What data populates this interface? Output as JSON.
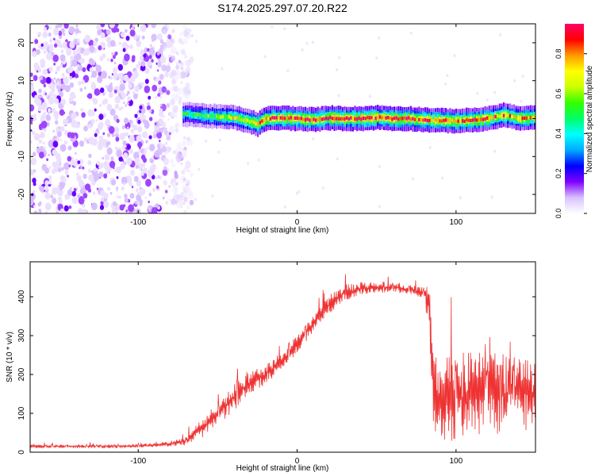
{
  "title": "S174.2025.297.07.20.R22",
  "chart_data": [
    {
      "type": "heatmap",
      "xlabel": "Height of straight line (km)",
      "ylabel": "Frequency (Hz)",
      "xlim": [
        -168,
        150
      ],
      "ylim": [
        -25,
        25
      ],
      "xticks": [
        -100,
        0,
        100
      ],
      "xtick_labels": [
        "-100",
        "0",
        "100"
      ],
      "yticks": [
        -20,
        -10,
        0,
        10,
        20
      ],
      "ytick_labels": [
        "-20",
        "-10",
        "0",
        "10",
        "20"
      ],
      "colorbar": {
        "label": "Normalized spectral amplitude",
        "range": [
          0,
          0.95
        ],
        "ticks": [
          0,
          0.2,
          0.4,
          0.6,
          0.8
        ],
        "tick_labels": [
          "0.0",
          "0.2",
          "0.4",
          "0.6",
          "0.8"
        ],
        "colormap": [
          "#ffffff",
          "#d9c2ff",
          "#7f00ff",
          "#0000ff",
          "#00aaff",
          "#00ffff",
          "#00ff66",
          "#33ff00",
          "#ccff00",
          "#ffff00",
          "#ff9900",
          "#ff0000",
          "#ff0066"
        ]
      },
      "noise_region_x": [
        -168,
        -70
      ],
      "noise_level": 0.12,
      "ridge": {
        "x": [
          -70,
          -60,
          -50,
          -40,
          -30,
          -25,
          -20,
          -10,
          0,
          10,
          20,
          30,
          40,
          50,
          60,
          70,
          80,
          90,
          100,
          110,
          120,
          130,
          140,
          150
        ],
        "freq": [
          1.2,
          0.8,
          0.5,
          0.3,
          -0.8,
          -1.5,
          0.0,
          0.2,
          0.0,
          -0.3,
          0.2,
          0.0,
          0.0,
          0.3,
          0.0,
          0.0,
          -0.3,
          -0.5,
          -0.6,
          -0.4,
          0.0,
          1.0,
          0.0,
          0.3
        ],
        "peak": [
          0.5,
          0.55,
          0.6,
          0.65,
          0.75,
          0.8,
          0.85,
          0.9,
          0.9,
          0.9,
          0.9,
          0.9,
          0.9,
          0.9,
          0.9,
          0.88,
          0.88,
          0.85,
          0.85,
          0.85,
          0.85,
          0.8,
          0.8,
          0.8
        ]
      }
    },
    {
      "type": "line",
      "xlabel": "Height of straight line (km)",
      "ylabel": "SNR (10 * v/v)",
      "xlim": [
        -168,
        150
      ],
      "ylim": [
        0,
        490
      ],
      "xticks": [
        -100,
        0,
        100
      ],
      "xtick_labels": [
        "-100",
        "0",
        "100"
      ],
      "yticks": [
        0,
        100,
        200,
        300,
        400
      ],
      "ytick_labels": [
        "0",
        "100",
        "200",
        "300",
        "400"
      ],
      "color": "#ee3333",
      "series": [
        {
          "name": "SNR",
          "x": [
            -168,
            -140,
            -110,
            -90,
            -80,
            -70,
            -60,
            -50,
            -40,
            -30,
            -20,
            -10,
            0,
            10,
            20,
            30,
            40,
            50,
            60,
            70,
            80,
            83,
            86,
            90,
            100,
            110,
            120,
            130,
            140,
            150
          ],
          "baseline": [
            15,
            15,
            15,
            18,
            22,
            30,
            60,
            100,
            140,
            180,
            200,
            235,
            275,
            330,
            380,
            410,
            420,
            425,
            425,
            420,
            410,
            380,
            150,
            140,
            140,
            145,
            150,
            150,
            150,
            150
          ],
          "spread": [
            8,
            8,
            8,
            9,
            12,
            20,
            40,
            50,
            60,
            55,
            45,
            40,
            40,
            40,
            40,
            35,
            30,
            25,
            25,
            20,
            25,
            120,
            160,
            180,
            190,
            190,
            180,
            170,
            160,
            150
          ]
        }
      ]
    }
  ]
}
